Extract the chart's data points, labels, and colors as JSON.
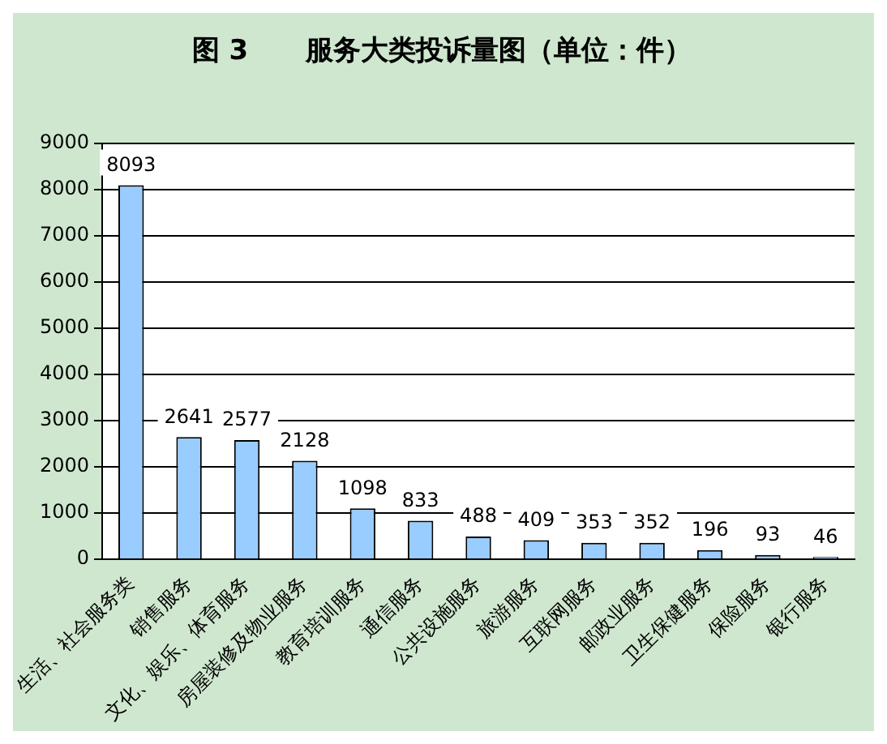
{
  "chart_data": {
    "type": "bar",
    "title": "图 3      服务大类投诉量图（单位：件）",
    "categories": [
      "生活、社会服务类",
      "销售服务",
      "文化、娱乐、体育服务",
      "房屋装修及物业服务",
      "教育培训服务",
      "通信服务",
      "公共设施服务",
      "旅游服务",
      "互联网服务",
      "邮政业服务",
      "卫生保健服务",
      "保险服务",
      "银行服务"
    ],
    "values": [
      8093,
      2641,
      2577,
      2128,
      1098,
      833,
      488,
      409,
      353,
      352,
      196,
      93,
      46
    ],
    "color": "#99ccff",
    "ylim": [
      0,
      9000
    ],
    "yticks": [
      0,
      1000,
      2000,
      3000,
      4000,
      5000,
      6000,
      7000,
      8000,
      9000
    ],
    "grid": "y",
    "data_labels": true
  }
}
